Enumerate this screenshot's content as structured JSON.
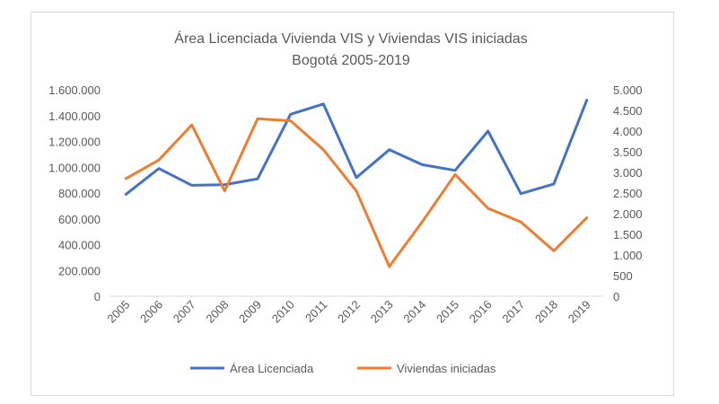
{
  "chart_data": {
    "type": "line",
    "title": "Área Licenciada Vivienda VIS y Viviendas VIS iniciadas",
    "subtitle": "Bogotá 2005-2019",
    "categories": [
      "2005",
      "2006",
      "2007",
      "2008",
      "2009",
      "2010",
      "2011",
      "2012",
      "2013",
      "2014",
      "2015",
      "2016",
      "2017",
      "2018",
      "2019"
    ],
    "y_left": {
      "ylim": [
        0,
        1600000
      ],
      "ticks": [
        0,
        200000,
        400000,
        600000,
        800000,
        1000000,
        1200000,
        1400000,
        1600000
      ],
      "tick_labels": [
        "0",
        "200.000",
        "400.000",
        "600.000",
        "800.000",
        "1.000.000",
        "1.200.000",
        "1.400.000",
        "1.600.000"
      ]
    },
    "y_right": {
      "ylim": [
        0,
        5000
      ],
      "ticks": [
        0,
        500,
        1000,
        1500,
        2000,
        2500,
        3000,
        3500,
        4000,
        4500,
        5000
      ],
      "tick_labels": [
        "0",
        "500",
        "1.000",
        "1.500",
        "2.000",
        "2.500",
        "3.000",
        "3.500",
        "4.000",
        "4.500",
        "5.000"
      ]
    },
    "series": [
      {
        "name": "Área Licenciada",
        "axis": "left",
        "color": "#4472c4",
        "values": [
          790000,
          990000,
          860000,
          865000,
          910000,
          1410000,
          1490000,
          920000,
          1135000,
          1020000,
          975000,
          1280000,
          795000,
          870000,
          1520000
        ]
      },
      {
        "name": "Viviendas iniciadas",
        "axis": "right",
        "color": "#ed7d31",
        "values": [
          2850,
          3300,
          4150,
          2550,
          4300,
          4250,
          3550,
          2550,
          720,
          1800,
          2950,
          2130,
          1800,
          1100,
          1900
        ]
      }
    ],
    "legend_position": "bottom",
    "grid": false
  }
}
